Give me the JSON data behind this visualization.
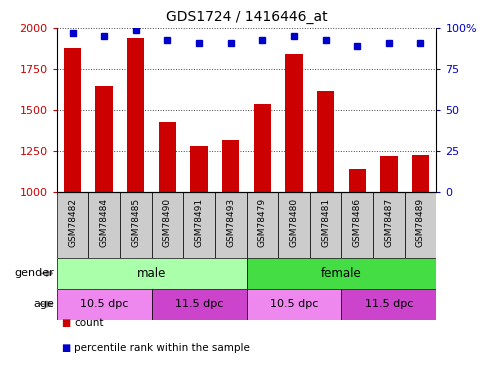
{
  "title": "GDS1724 / 1416446_at",
  "samples": [
    "GSM78482",
    "GSM78484",
    "GSM78485",
    "GSM78490",
    "GSM78491",
    "GSM78493",
    "GSM78479",
    "GSM78480",
    "GSM78481",
    "GSM78486",
    "GSM78487",
    "GSM78489"
  ],
  "counts": [
    1880,
    1650,
    1940,
    1430,
    1280,
    1320,
    1540,
    1840,
    1620,
    1140,
    1220,
    1230
  ],
  "percentiles": [
    97,
    95,
    99,
    93,
    91,
    91,
    93,
    95,
    93,
    89,
    91,
    91
  ],
  "ylim_left": [
    1000,
    2000
  ],
  "ylim_right": [
    0,
    100
  ],
  "yticks_left": [
    1000,
    1250,
    1500,
    1750,
    2000
  ],
  "yticks_right": [
    0,
    25,
    50,
    75,
    100
  ],
  "bar_color": "#cc0000",
  "dot_color": "#0000cc",
  "bar_width": 0.55,
  "gender": [
    {
      "label": "male",
      "start": 0,
      "end": 6,
      "color": "#aaffaa"
    },
    {
      "label": "female",
      "start": 6,
      "end": 12,
      "color": "#44dd44"
    }
  ],
  "age": [
    {
      "label": "10.5 dpc",
      "start": 0,
      "end": 3,
      "color": "#ee88ee"
    },
    {
      "label": "11.5 dpc",
      "start": 3,
      "end": 6,
      "color": "#cc44cc"
    },
    {
      "label": "10.5 dpc",
      "start": 6,
      "end": 9,
      "color": "#ee88ee"
    },
    {
      "label": "11.5 dpc",
      "start": 9,
      "end": 12,
      "color": "#cc44cc"
    }
  ],
  "legend_items": [
    {
      "label": "count",
      "color": "#cc0000"
    },
    {
      "label": "percentile rank within the sample",
      "color": "#0000cc"
    }
  ],
  "tick_label_color_left": "#cc0000",
  "tick_label_color_right": "#0000cc",
  "xlabel_area_color": "#cccccc",
  "grid_linestyle": "dotted",
  "grid_color": "#444444"
}
